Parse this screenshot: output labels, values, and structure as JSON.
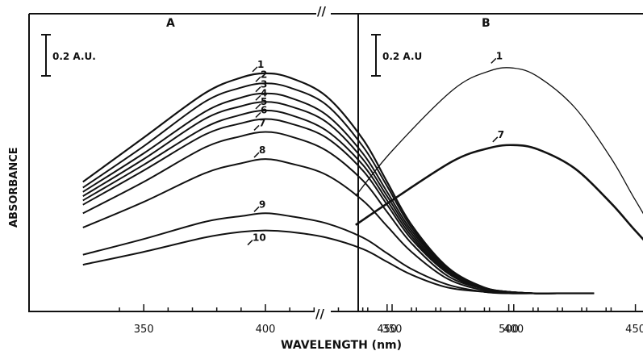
{
  "chart_data": [
    {
      "type": "line",
      "panel": "A",
      "xlabel": "WAVELENGTH (nm)",
      "ylabel": "ABSORBANCE",
      "scale_bar": "0.2 A.U.",
      "xlim": [
        325,
        540
      ],
      "x_ticks": [
        350,
        400,
        450,
        500
      ],
      "x_tick_labels": [
        "350",
        "400",
        "450",
        "500"
      ],
      "x": [
        325,
        350,
        375,
        390,
        400,
        410,
        425,
        440,
        450,
        460,
        475,
        490,
        500,
        510,
        520,
        535
      ],
      "series": [
        {
          "name": "1",
          "values": [
            0.8,
            1.11,
            1.42,
            1.53,
            1.56,
            1.53,
            1.4,
            1.1,
            0.8,
            0.5,
            0.2,
            0.06,
            0.03,
            0.02,
            0.02,
            0.02
          ]
        },
        {
          "name": "2",
          "values": [
            0.76,
            1.05,
            1.36,
            1.46,
            1.49,
            1.46,
            1.34,
            1.05,
            0.77,
            0.48,
            0.19,
            0.06,
            0.03,
            0.02,
            0.02,
            0.02
          ]
        },
        {
          "name": "3",
          "values": [
            0.73,
            1.0,
            1.29,
            1.39,
            1.42,
            1.39,
            1.27,
            1.0,
            0.73,
            0.46,
            0.18,
            0.06,
            0.03,
            0.02,
            0.02,
            0.02
          ]
        },
        {
          "name": "4",
          "values": [
            0.7,
            0.96,
            1.24,
            1.33,
            1.36,
            1.33,
            1.22,
            0.96,
            0.7,
            0.44,
            0.17,
            0.06,
            0.03,
            0.02,
            0.02,
            0.02
          ]
        },
        {
          "name": "5",
          "values": [
            0.67,
            0.92,
            1.18,
            1.27,
            1.3,
            1.27,
            1.16,
            0.92,
            0.67,
            0.42,
            0.16,
            0.05,
            0.03,
            0.02,
            0.02,
            0.02
          ]
        },
        {
          "name": "6",
          "values": [
            0.64,
            0.88,
            1.13,
            1.21,
            1.24,
            1.21,
            1.11,
            0.88,
            0.64,
            0.4,
            0.16,
            0.05,
            0.03,
            0.02,
            0.02,
            0.02
          ]
        },
        {
          "name": "7",
          "values": [
            0.58,
            0.8,
            1.04,
            1.12,
            1.15,
            1.12,
            1.02,
            0.81,
            0.59,
            0.37,
            0.14,
            0.05,
            0.03,
            0.02,
            0.02,
            0.02
          ]
        },
        {
          "name": "8",
          "values": [
            0.48,
            0.66,
            0.86,
            0.93,
            0.96,
            0.93,
            0.85,
            0.67,
            0.49,
            0.31,
            0.12,
            0.04,
            0.03,
            0.02,
            0.02,
            0.02
          ]
        },
        {
          "name": "9",
          "values": [
            0.29,
            0.4,
            0.52,
            0.56,
            0.58,
            0.56,
            0.51,
            0.41,
            0.3,
            0.19,
            0.08,
            0.03,
            0.02,
            0.02,
            0.02,
            0.02
          ]
        },
        {
          "name": "10",
          "values": [
            0.22,
            0.31,
            0.41,
            0.45,
            0.46,
            0.45,
            0.41,
            0.33,
            0.24,
            0.15,
            0.06,
            0.03,
            0.02,
            0.02,
            0.02,
            0.02
          ]
        }
      ],
      "curve_labels": [
        "1",
        "2",
        "3",
        "4",
        "5",
        "6",
        "7",
        "8",
        "9",
        "10"
      ]
    },
    {
      "type": "line",
      "panel": "B",
      "xlabel": "WAVELENGTH (nm)",
      "scale_bar": "0.2 A.U",
      "xlim": [
        335,
        540
      ],
      "x_ticks": [
        350,
        400,
        450,
        500
      ],
      "x_tick_labels": [
        "350",
        "400",
        "450",
        "500"
      ],
      "x": [
        335,
        350,
        375,
        390,
        400,
        410,
        425,
        440,
        450,
        460,
        475,
        490,
        500,
        510,
        520,
        540
      ],
      "series": [
        {
          "name": "1",
          "values": [
            0.69,
            1.0,
            1.42,
            1.55,
            1.57,
            1.51,
            1.3,
            0.95,
            0.66,
            0.4,
            0.15,
            0.05,
            0.02,
            0.01,
            0.01,
            0.01
          ]
        },
        {
          "name": "7",
          "values": [
            0.49,
            0.66,
            0.93,
            1.02,
            1.04,
            1.01,
            0.88,
            0.64,
            0.45,
            0.28,
            0.11,
            0.04,
            0.02,
            0.01,
            0.01,
            0.01
          ]
        }
      ],
      "curve_labels": [
        "1",
        "7"
      ]
    }
  ],
  "axis_break": "//",
  "figure_text": {
    "panel_a": "A",
    "panel_b": "B",
    "ylabel": "ABSORBANCE",
    "xlabel": "WAVELENGTH (nm)",
    "scale_a": "0.2 A.U.",
    "scale_b": "0.2 A.U"
  }
}
